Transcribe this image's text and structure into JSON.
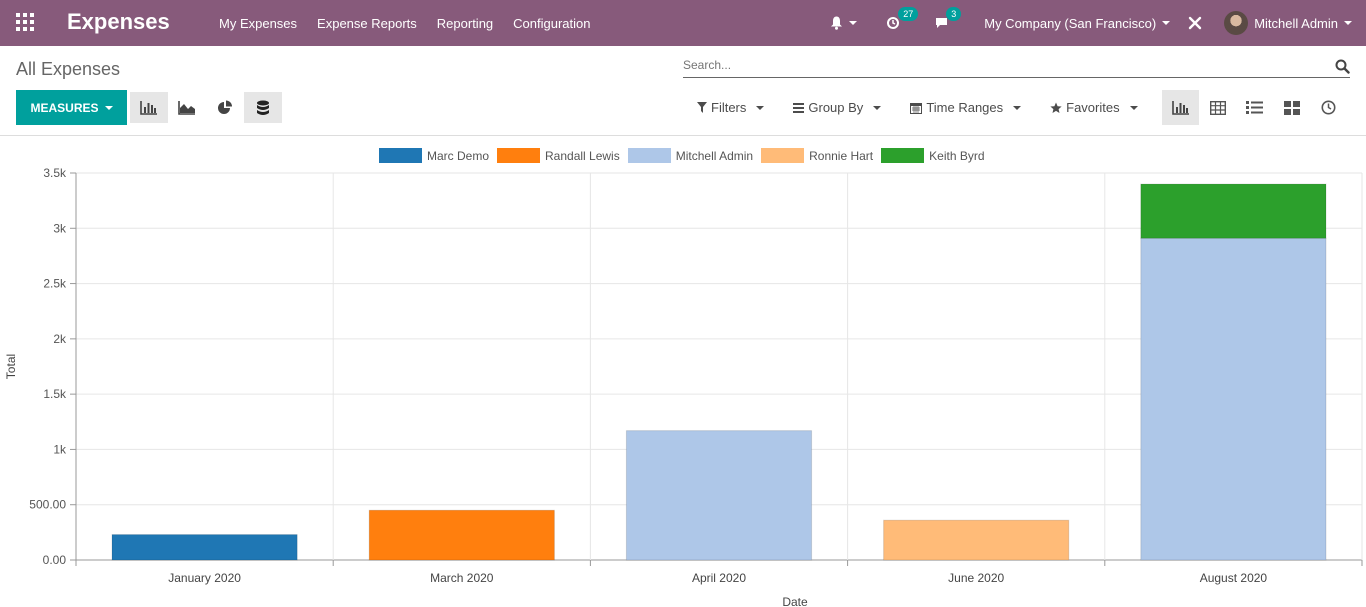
{
  "app": {
    "title": "Expenses",
    "menu": [
      "My Expenses",
      "Expense Reports",
      "Reporting",
      "Configuration"
    ],
    "activity_count": "27",
    "message_count": "3",
    "company": "My Company (San Francisco)",
    "user": "Mitchell Admin"
  },
  "control_panel": {
    "title": "All Expenses",
    "search_placeholder": "Search...",
    "measures_label": "MEASURES",
    "filters_label": "Filters",
    "groupby_label": "Group By",
    "timeranges_label": "Time Ranges",
    "favorites_label": "Favorites"
  },
  "colors": {
    "topbar": "#875a7b",
    "accent": "#00a09d"
  },
  "chart_data": {
    "type": "bar",
    "stacked": true,
    "categories": [
      "January 2020",
      "March 2020",
      "April 2020",
      "June 2020",
      "August 2020"
    ],
    "series": [
      {
        "name": "Marc Demo",
        "color": "#1f77b4",
        "values": [
          230,
          0,
          0,
          0,
          0
        ]
      },
      {
        "name": "Randall Lewis",
        "color": "#ff7f0e",
        "values": [
          0,
          450,
          0,
          0,
          0
        ]
      },
      {
        "name": "Mitchell Admin",
        "color": "#aec7e8",
        "values": [
          0,
          0,
          1170,
          0,
          2910
        ]
      },
      {
        "name": "Ronnie Hart",
        "color": "#ffbb78",
        "values": [
          0,
          0,
          0,
          360,
          0
        ]
      },
      {
        "name": "Keith Byrd",
        "color": "#2ca02c",
        "values": [
          0,
          0,
          0,
          0,
          490
        ]
      }
    ],
    "xlabel": "Date",
    "ylabel": "Total",
    "ylim": [
      0,
      3500
    ],
    "yticks": [
      "0.00",
      "500.00",
      "1k",
      "1.5k",
      "2k",
      "2.5k",
      "3k",
      "3.5k"
    ],
    "legend_position": "top",
    "grid": true
  }
}
